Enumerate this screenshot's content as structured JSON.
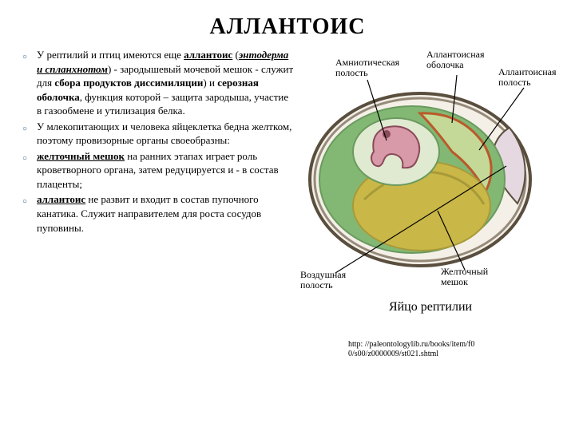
{
  "title": "АЛЛАНТОИС",
  "bullets": [
    {
      "segments": [
        {
          "t": "У рептилий и птиц имеются еще "
        },
        {
          "t": "аллантоис",
          "b": true,
          "u": true
        },
        {
          "t": " ("
        },
        {
          "t": "энтодерма и спланхнотом",
          "b": true,
          "u": true,
          "i": true
        },
        {
          "t": ") - зародышевый мочевой мешок -  служит для "
        },
        {
          "t": "сбора продуктов диссимиляции",
          "b": true
        },
        {
          "t": ") и "
        },
        {
          "t": "серозная оболочка",
          "b": true
        },
        {
          "t": ", функция которой – защита зародыша, участие в газообмене и утилизация белка."
        }
      ]
    },
    {
      "segments": [
        {
          "t": "У млекопитающих и человека яйцеклетка бедна желтком, поэтому провизорные органы своеобразны:"
        }
      ]
    },
    {
      "segments": [
        {
          "t": "желточный мешок",
          "b": true,
          "u": true
        },
        {
          "t": " на ранних этапах играет роль кроветворного органа, затем редуцируется и - в состав плаценты;"
        }
      ]
    },
    {
      "segments": [
        {
          "t": "аллантоис",
          "b": true,
          "u": true
        },
        {
          "t": " не развит и входит в состав пупочного канатика. Служит направителем для роста сосудов пуповины."
        }
      ]
    }
  ],
  "caption": "Яйцо рептилии",
  "link_line1": "http: //paleontologylib.ru/books/item/f0",
  "link_line2": "0/s00/z0000009/st021.shtml",
  "labels": {
    "amniotic": "Амниотическая\nполость",
    "allantois_shell": "Аллантоисная\nоболочка",
    "allantois_cavity": "Аллантоисная\nполость",
    "air": "Воздушная\nполость",
    "yolk": "Желточный\nмешок"
  },
  "colors": {
    "yolk": "#c9b847",
    "albumen": "#83b874",
    "yolk_dark": "#a89a3a",
    "embryo_pink": "#d89aa8",
    "embryo_dark": "#8a4a5a",
    "air_cavity": "#e6d8e0",
    "shell": "#968a7a",
    "shell_dark": "#5a4e3e",
    "allantois_outline": "#b85a2a",
    "background": "#ffffff"
  }
}
